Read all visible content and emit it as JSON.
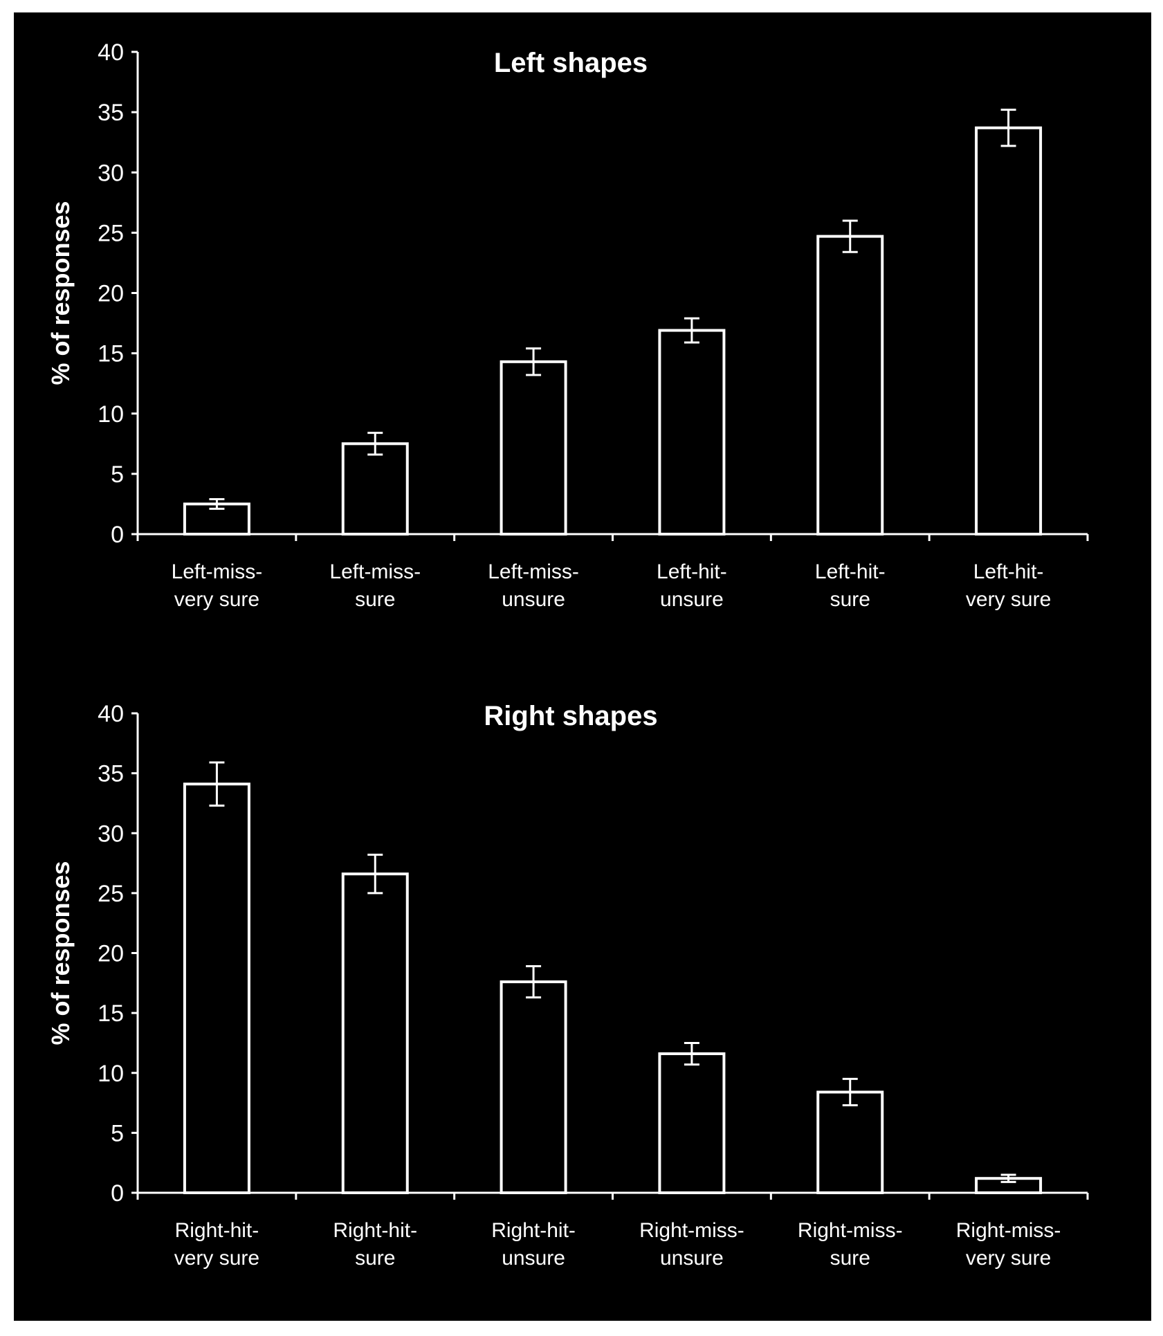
{
  "colors": {
    "background": "#000000",
    "foreground": "#ffffff"
  },
  "chart_data": [
    {
      "type": "bar",
      "title": "Left shapes",
      "xlabel": "",
      "ylabel": "% of responses",
      "ylim": [
        0,
        40
      ],
      "yticks": [
        0,
        5,
        10,
        15,
        20,
        25,
        30,
        35,
        40
      ],
      "grid": false,
      "categories": [
        [
          "Left-miss-",
          "very sure"
        ],
        [
          "Left-miss-",
          "sure"
        ],
        [
          "Left-miss-",
          "unsure"
        ],
        [
          "Left-hit-",
          "unsure"
        ],
        [
          "Left-hit-",
          "sure"
        ],
        [
          "Left-hit-",
          "very sure"
        ]
      ],
      "values": [
        2.5,
        7.5,
        14.3,
        16.9,
        24.7,
        33.7
      ],
      "errors": [
        0.4,
        0.9,
        1.1,
        1.0,
        1.3,
        1.5
      ]
    },
    {
      "type": "bar",
      "title": "Right shapes",
      "xlabel": "",
      "ylabel": "% of responses",
      "ylim": [
        0,
        40
      ],
      "yticks": [
        0,
        5,
        10,
        15,
        20,
        25,
        30,
        35,
        40
      ],
      "grid": false,
      "categories": [
        [
          "Right-hit-",
          "very sure"
        ],
        [
          "Right-hit-",
          "sure"
        ],
        [
          "Right-hit-",
          "unsure"
        ],
        [
          "Right-miss-",
          "unsure"
        ],
        [
          "Right-miss-",
          "sure"
        ],
        [
          "Right-miss-",
          "very sure"
        ]
      ],
      "values": [
        34.1,
        26.6,
        17.6,
        11.6,
        8.4,
        1.2
      ],
      "errors": [
        1.8,
        1.6,
        1.3,
        0.9,
        1.1,
        0.3
      ]
    }
  ]
}
